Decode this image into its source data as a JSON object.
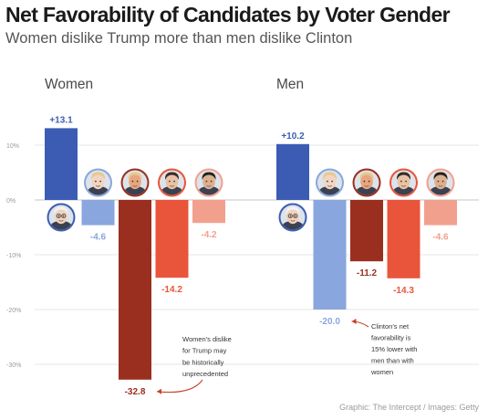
{
  "title": "Net Favorability of Candidates by Voter Gender",
  "subtitle": "Women dislike Trump more than men dislike Clinton",
  "credit": "Graphic: The Intercept / Images: Getty",
  "chart_data": {
    "type": "bar",
    "ylim": [
      -35,
      15
    ],
    "y_ticks": [
      {
        "value": 10,
        "label": "10%"
      },
      {
        "value": 0,
        "label": "0%"
      },
      {
        "value": -10,
        "label": "-10%"
      },
      {
        "value": -20,
        "label": "-20%"
      },
      {
        "value": -30,
        "label": "-30%"
      }
    ],
    "grid": true,
    "candidate_colors": {
      "Sanders": "#3c5cb4",
      "Clinton": "#8aa6de",
      "Trump": "#9a2f1f",
      "Cruz": "#e9553a",
      "Rubio": "#f2a08e"
    },
    "panels": [
      {
        "name": "Women",
        "values": [
          {
            "candidate": "Sanders",
            "value": 13.1,
            "label": "+13.1"
          },
          {
            "candidate": "Clinton",
            "value": -4.6,
            "label": "-4.6"
          },
          {
            "candidate": "Trump",
            "value": -32.8,
            "label": "-32.8"
          },
          {
            "candidate": "Cruz",
            "value": -14.2,
            "label": "-14.2"
          },
          {
            "candidate": "Rubio",
            "value": -4.2,
            "label": "-4.2"
          }
        ],
        "annotation": {
          "lines": [
            "Women's dislike",
            "for Trump may",
            "be historically",
            "unprecedented"
          ],
          "target": "Trump"
        }
      },
      {
        "name": "Men",
        "values": [
          {
            "candidate": "Sanders",
            "value": 10.2,
            "label": "+10.2"
          },
          {
            "candidate": "Clinton",
            "value": -20.0,
            "label": "-20.0"
          },
          {
            "candidate": "Trump",
            "value": -11.2,
            "label": "-11.2"
          },
          {
            "candidate": "Cruz",
            "value": -14.3,
            "label": "-14.3"
          },
          {
            "candidate": "Rubio",
            "value": -4.6,
            "label": "-4.6"
          }
        ],
        "annotation": {
          "lines": [
            "Clinton's net",
            "favorability is",
            "15% lower with",
            "men than with",
            "women"
          ],
          "target": "Clinton"
        }
      }
    ]
  }
}
